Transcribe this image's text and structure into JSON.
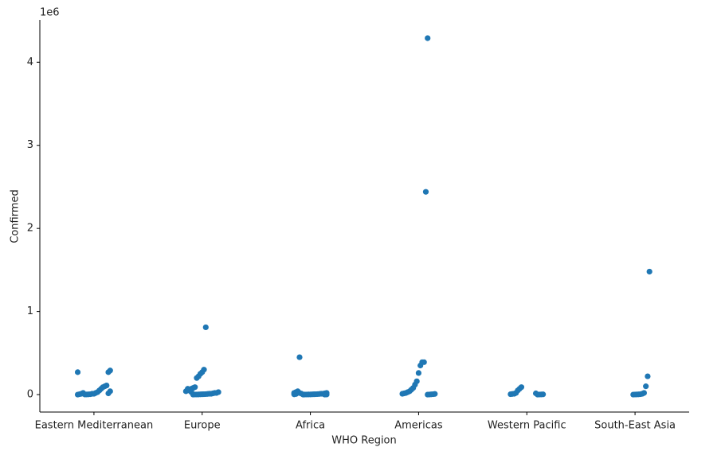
{
  "chart_data": {
    "type": "strip",
    "xlabel": "WHO Region",
    "ylabel": "Confirmed",
    "y_offset_label": "1e6",
    "categories": [
      "Eastern Mediterranean",
      "Europe",
      "Africa",
      "Americas",
      "Western Pacific",
      "South-East Asia"
    ],
    "values": [
      [
        0.27,
        0.29,
        0.27,
        0.11,
        0.1,
        0.09,
        0.07,
        0.05,
        0.03,
        0.02,
        0.01,
        0.01,
        0.005,
        0.003,
        0.002,
        0.001,
        0.02,
        0.01,
        0.005,
        0.0,
        0.04,
        0.015
      ],
      [
        0.81,
        0.3,
        0.27,
        0.25,
        0.22,
        0.2,
        0.09,
        0.08,
        0.07,
        0.06,
        0.05,
        0.04,
        0.03,
        0.02,
        0.02,
        0.015,
        0.01,
        0.01,
        0.008,
        0.006,
        0.005,
        0.004,
        0.003,
        0.002,
        0.001,
        0.001,
        0.0,
        0.03,
        0.05,
        0.07
      ],
      [
        0.45,
        0.04,
        0.03,
        0.02,
        0.02,
        0.015,
        0.01,
        0.01,
        0.008,
        0.006,
        0.005,
        0.004,
        0.003,
        0.002,
        0.002,
        0.001,
        0.001,
        0.0,
        0.012,
        0.02,
        0.025,
        0.007,
        0.003,
        0.001,
        0.0
      ],
      [
        4.29,
        2.44,
        0.39,
        0.39,
        0.35,
        0.26,
        0.16,
        0.12,
        0.08,
        0.06,
        0.04,
        0.03,
        0.02,
        0.015,
        0.01,
        0.008,
        0.005,
        0.003,
        0.001,
        0.0
      ],
      [
        0.09,
        0.07,
        0.05,
        0.02,
        0.01,
        0.008,
        0.005,
        0.003,
        0.002,
        0.001,
        0.0,
        0.015
      ],
      [
        1.48,
        0.22,
        0.1,
        0.02,
        0.01,
        0.005,
        0.003,
        0.002,
        0.001,
        0.0
      ]
    ],
    "color": "#1f77b4",
    "ylim": [
      -0.21,
      4.51
    ],
    "yticks": [
      0,
      1,
      2,
      3,
      4
    ]
  }
}
